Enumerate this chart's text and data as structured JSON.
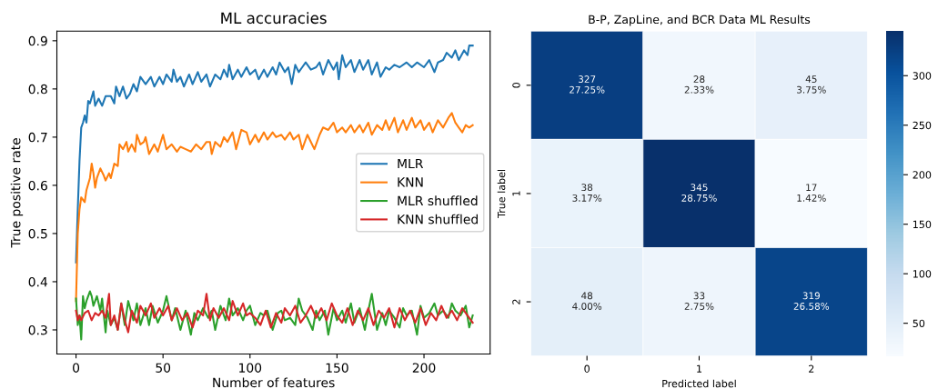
{
  "chart_data": [
    {
      "type": "line",
      "title": "ML accuracies",
      "xlabel": "Number of features",
      "ylabel": "True positive rate",
      "xlim": [
        -11,
        238
      ],
      "xticks": [
        0,
        50,
        100,
        150,
        200
      ],
      "ylim": [
        0.25,
        0.92
      ],
      "yticks": [
        0.3,
        0.4,
        0.5,
        0.6,
        0.7,
        0.8,
        0.9
      ],
      "grid": false,
      "legend": "right",
      "marker": "none",
      "line_style": "solid",
      "series": [
        {
          "name": "MLR",
          "color": "#1f77b4",
          "x": [
            0,
            1,
            2,
            3,
            4,
            5,
            6,
            7,
            8,
            10,
            11,
            13,
            15,
            17,
            20,
            22,
            23,
            25,
            27,
            29,
            31,
            33,
            35,
            37,
            40,
            43,
            45,
            48,
            50,
            52,
            55,
            56,
            58,
            60,
            62,
            65,
            67,
            70,
            72,
            75,
            77,
            80,
            83,
            85,
            87,
            88,
            90,
            93,
            95,
            98,
            100,
            103,
            105,
            108,
            110,
            113,
            115,
            117,
            120,
            122,
            124,
            126,
            128,
            130,
            132,
            135,
            138,
            140,
            142,
            145,
            148,
            150,
            151,
            153,
            155,
            158,
            160,
            163,
            165,
            168,
            170,
            173,
            175,
            178,
            180,
            183,
            186,
            190,
            193,
            196,
            200,
            203,
            206,
            208,
            211,
            213,
            216,
            218,
            220,
            223,
            225,
            226,
            228
          ],
          "values": [
            0.44,
            0.55,
            0.65,
            0.72,
            0.73,
            0.745,
            0.73,
            0.775,
            0.77,
            0.795,
            0.765,
            0.78,
            0.765,
            0.785,
            0.785,
            0.77,
            0.805,
            0.785,
            0.805,
            0.78,
            0.79,
            0.81,
            0.795,
            0.825,
            0.81,
            0.825,
            0.805,
            0.825,
            0.81,
            0.83,
            0.815,
            0.84,
            0.815,
            0.825,
            0.805,
            0.83,
            0.81,
            0.835,
            0.815,
            0.83,
            0.805,
            0.83,
            0.82,
            0.84,
            0.825,
            0.85,
            0.82,
            0.84,
            0.825,
            0.845,
            0.83,
            0.84,
            0.82,
            0.84,
            0.825,
            0.845,
            0.83,
            0.855,
            0.835,
            0.845,
            0.81,
            0.85,
            0.835,
            0.845,
            0.855,
            0.84,
            0.845,
            0.855,
            0.83,
            0.86,
            0.84,
            0.855,
            0.82,
            0.87,
            0.845,
            0.86,
            0.835,
            0.86,
            0.84,
            0.86,
            0.83,
            0.855,
            0.825,
            0.845,
            0.84,
            0.85,
            0.845,
            0.855,
            0.845,
            0.855,
            0.845,
            0.86,
            0.835,
            0.855,
            0.86,
            0.875,
            0.865,
            0.88,
            0.86,
            0.88,
            0.87,
            0.89,
            0.89
          ]
        },
        {
          "name": "KNN",
          "color": "#ff7f0e",
          "x": [
            0,
            1,
            2,
            3,
            4,
            5,
            6,
            8,
            9,
            10,
            11,
            12,
            14,
            16,
            17,
            19,
            20,
            22,
            24,
            25,
            27,
            29,
            30,
            32,
            34,
            35,
            37,
            39,
            40,
            42,
            45,
            47,
            50,
            52,
            55,
            58,
            60,
            63,
            66,
            69,
            72,
            75,
            77,
            78,
            80,
            83,
            85,
            87,
            90,
            92,
            95,
            98,
            100,
            103,
            105,
            108,
            110,
            113,
            115,
            118,
            120,
            123,
            125,
            128,
            130,
            133,
            135,
            137,
            140,
            142,
            145,
            148,
            150,
            153,
            155,
            158,
            160,
            163,
            165,
            168,
            170,
            173,
            176,
            178,
            180,
            183,
            185,
            188,
            190,
            193,
            195,
            198,
            200,
            203,
            205,
            208,
            211,
            214,
            216,
            218,
            220,
            222,
            224,
            226,
            228
          ],
          "values": [
            0.36,
            0.5,
            0.55,
            0.575,
            0.57,
            0.565,
            0.59,
            0.615,
            0.645,
            0.625,
            0.595,
            0.615,
            0.635,
            0.62,
            0.61,
            0.625,
            0.615,
            0.645,
            0.64,
            0.685,
            0.675,
            0.69,
            0.67,
            0.685,
            0.67,
            0.705,
            0.685,
            0.69,
            0.7,
            0.665,
            0.685,
            0.67,
            0.705,
            0.675,
            0.685,
            0.67,
            0.68,
            0.675,
            0.67,
            0.685,
            0.675,
            0.69,
            0.69,
            0.665,
            0.69,
            0.68,
            0.7,
            0.69,
            0.71,
            0.675,
            0.715,
            0.71,
            0.685,
            0.705,
            0.69,
            0.71,
            0.695,
            0.71,
            0.7,
            0.705,
            0.695,
            0.71,
            0.695,
            0.705,
            0.675,
            0.705,
            0.69,
            0.675,
            0.705,
            0.72,
            0.715,
            0.73,
            0.71,
            0.72,
            0.71,
            0.725,
            0.71,
            0.725,
            0.71,
            0.73,
            0.705,
            0.725,
            0.715,
            0.735,
            0.715,
            0.74,
            0.71,
            0.735,
            0.715,
            0.74,
            0.72,
            0.735,
            0.715,
            0.73,
            0.71,
            0.735,
            0.72,
            0.74,
            0.75,
            0.73,
            0.72,
            0.71,
            0.725,
            0.72,
            0.725
          ]
        },
        {
          "name": "MLR shuffled",
          "color": "#2ca02c",
          "x": [
            0,
            1,
            2,
            3,
            4,
            5,
            6,
            8,
            9,
            10,
            12,
            14,
            15,
            17,
            18,
            20,
            22,
            24,
            26,
            28,
            30,
            33,
            35,
            37,
            40,
            42,
            44,
            47,
            50,
            52,
            55,
            57,
            60,
            63,
            66,
            68,
            70,
            73,
            76,
            78,
            80,
            83,
            86,
            88,
            90,
            93,
            96,
            98,
            100,
            103,
            106,
            108,
            110,
            113,
            116,
            118,
            120,
            123,
            126,
            128,
            130,
            133,
            136,
            138,
            140,
            143,
            145,
            148,
            150,
            153,
            155,
            158,
            160,
            163,
            166,
            168,
            170,
            173,
            176,
            178,
            180,
            183,
            186,
            188,
            190,
            193,
            196,
            198,
            200,
            203,
            206,
            208,
            211,
            214,
            216,
            218,
            221,
            224,
            226,
            228
          ],
          "values": [
            0.365,
            0.31,
            0.33,
            0.28,
            0.37,
            0.345,
            0.36,
            0.38,
            0.37,
            0.35,
            0.37,
            0.34,
            0.365,
            0.295,
            0.34,
            0.31,
            0.325,
            0.3,
            0.355,
            0.31,
            0.36,
            0.32,
            0.355,
            0.31,
            0.345,
            0.31,
            0.35,
            0.315,
            0.34,
            0.37,
            0.32,
            0.345,
            0.3,
            0.34,
            0.29,
            0.335,
            0.32,
            0.345,
            0.325,
            0.34,
            0.3,
            0.35,
            0.32,
            0.365,
            0.33,
            0.345,
            0.32,
            0.34,
            0.35,
            0.31,
            0.335,
            0.33,
            0.34,
            0.3,
            0.335,
            0.34,
            0.32,
            0.325,
            0.31,
            0.365,
            0.34,
            0.325,
            0.3,
            0.34,
            0.32,
            0.34,
            0.29,
            0.345,
            0.32,
            0.34,
            0.315,
            0.355,
            0.315,
            0.345,
            0.3,
            0.34,
            0.375,
            0.3,
            0.335,
            0.31,
            0.34,
            0.325,
            0.305,
            0.345,
            0.33,
            0.34,
            0.29,
            0.35,
            0.325,
            0.335,
            0.355,
            0.33,
            0.34,
            0.325,
            0.355,
            0.34,
            0.33,
            0.35,
            0.305,
            0.33
          ]
        },
        {
          "name": "KNN shuffled",
          "color": "#d62728",
          "x": [
            0,
            1,
            2,
            3,
            5,
            7,
            9,
            11,
            13,
            15,
            17,
            19,
            20,
            22,
            24,
            26,
            28,
            30,
            32,
            35,
            37,
            40,
            43,
            45,
            48,
            50,
            53,
            55,
            58,
            61,
            64,
            67,
            70,
            73,
            75,
            77,
            79,
            82,
            85,
            88,
            90,
            93,
            96,
            98,
            100,
            103,
            106,
            109,
            112,
            115,
            118,
            120,
            123,
            126,
            129,
            132,
            135,
            138,
            141,
            144,
            147,
            150,
            153,
            156,
            159,
            162,
            165,
            168,
            171,
            174,
            177,
            180,
            183,
            186,
            189,
            192,
            195,
            198,
            201,
            204,
            207,
            210,
            213,
            216,
            219,
            222,
            225,
            228
          ],
          "values": [
            0.34,
            0.32,
            0.33,
            0.32,
            0.335,
            0.34,
            0.32,
            0.335,
            0.33,
            0.34,
            0.325,
            0.375,
            0.31,
            0.33,
            0.3,
            0.355,
            0.32,
            0.295,
            0.34,
            0.315,
            0.35,
            0.33,
            0.355,
            0.325,
            0.345,
            0.33,
            0.35,
            0.32,
            0.345,
            0.32,
            0.335,
            0.305,
            0.34,
            0.33,
            0.375,
            0.32,
            0.345,
            0.325,
            0.345,
            0.32,
            0.36,
            0.33,
            0.355,
            0.33,
            0.335,
            0.325,
            0.31,
            0.34,
            0.305,
            0.335,
            0.315,
            0.345,
            0.33,
            0.35,
            0.315,
            0.33,
            0.35,
            0.325,
            0.345,
            0.32,
            0.355,
            0.33,
            0.315,
            0.345,
            0.31,
            0.34,
            0.32,
            0.345,
            0.31,
            0.34,
            0.325,
            0.345,
            0.305,
            0.345,
            0.32,
            0.34,
            0.315,
            0.345,
            0.31,
            0.335,
            0.32,
            0.35,
            0.325,
            0.34,
            0.32,
            0.345,
            0.33,
            0.315
          ]
        }
      ]
    },
    {
      "type": "heatmap",
      "title": "B-P, ZapLine, and BCR Data ML Results",
      "xlabel": "Predicted label",
      "ylabel": "True label",
      "categories": [
        "0",
        "1",
        "2"
      ],
      "y_categories": [
        "0",
        "1",
        "2"
      ],
      "cells": [
        [
          327,
          28,
          45
        ],
        [
          38,
          345,
          17
        ],
        [
          48,
          33,
          319
        ]
      ],
      "cell_labels": [
        [
          "327\n27.25%",
          "28\n2.33%",
          "45\n3.75%"
        ],
        [
          "38\n3.17%",
          "345\n28.75%",
          "17\n1.42%"
        ],
        [
          "48\n4.00%",
          "33\n2.75%",
          "319\n26.58%"
        ]
      ],
      "clim": [
        17,
        345
      ],
      "cticks": [
        50,
        100,
        150,
        200,
        250,
        300
      ]
    }
  ]
}
